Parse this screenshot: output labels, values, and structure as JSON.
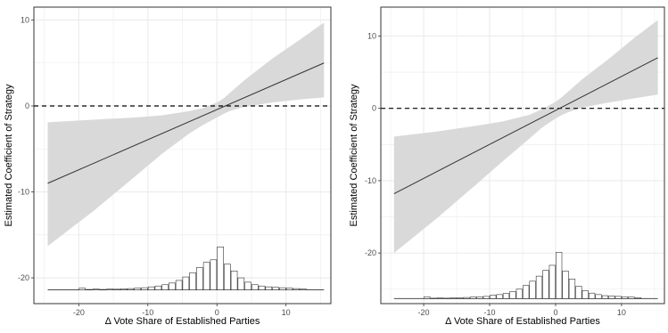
{
  "chart_data": [
    {
      "type": "line",
      "xlabel": "Δ Vote Share of Established Parties",
      "ylabel": "Estimated Coefficient of Strategy",
      "xlim": [
        -26.5,
        16.5
      ],
      "ylim": [
        -23.0,
        11.5
      ],
      "xticks": [
        -20,
        -10,
        0,
        10
      ],
      "yticks": [
        -20,
        -10,
        0,
        10
      ],
      "reference_line": {
        "y": 0,
        "style": "dashed"
      },
      "series": [
        {
          "role": "estimate",
          "x": [
            -24.5,
            15.5
          ],
          "y": [
            -9.0,
            5.0
          ]
        }
      ],
      "confidence_band": {
        "x": [
          -24.5,
          -18,
          -12,
          -8,
          -4,
          -2,
          0,
          1,
          2,
          4,
          8,
          12,
          15.5
        ],
        "lower": [
          -16.3,
          -12.3,
          -8.3,
          -5.6,
          -3.2,
          -2.2,
          -1.35,
          -0.9,
          -0.55,
          -0.1,
          0.4,
          0.75,
          1.0
        ],
        "upper": [
          -1.9,
          -1.6,
          -1.35,
          -1.1,
          -0.6,
          -0.25,
          0.4,
          0.9,
          1.6,
          3.0,
          5.5,
          7.7,
          9.7
        ]
      },
      "histogram": {
        "baseline": -21.4,
        "x": [
          -19.5,
          -18.5,
          -17.5,
          -16.5,
          -15.5,
          -14.5,
          -13.5,
          -12.5,
          -11.5,
          -10.5,
          -9.5,
          -8.5,
          -7.5,
          -6.5,
          -5.5,
          -4.5,
          -3.5,
          -2.5,
          -1.5,
          -0.5,
          0.5,
          1.5,
          2.5,
          3.5,
          4.5,
          5.5,
          6.5,
          7.5,
          8.5,
          9.5,
          10.5,
          11.5,
          12.5
        ],
        "heights": [
          0.2,
          0.05,
          0.1,
          0.05,
          0.1,
          0.08,
          0.12,
          0.15,
          0.2,
          0.25,
          0.35,
          0.45,
          0.6,
          0.8,
          1.1,
          1.5,
          2.0,
          2.6,
          3.2,
          3.5,
          5.0,
          3.0,
          2.2,
          1.4,
          0.9,
          0.6,
          0.45,
          0.35,
          0.3,
          0.25,
          0.2,
          0.15,
          0.1
        ]
      }
    },
    {
      "type": "line",
      "xlabel": "Δ Vote Share of Established Parties",
      "ylabel": "Estimated Coefficient of Strategy",
      "xlim": [
        -26.5,
        16.5
      ],
      "ylim": [
        -27.0,
        14.0
      ],
      "xticks": [
        -20,
        -10,
        0,
        10
      ],
      "yticks": [
        -20,
        -10,
        0,
        10
      ],
      "reference_line": {
        "y": 0,
        "style": "dashed"
      },
      "series": [
        {
          "role": "estimate",
          "x": [
            -24.5,
            15.5
          ],
          "y": [
            -11.8,
            7.0
          ]
        }
      ],
      "confidence_band": {
        "x": [
          -24.5,
          -18,
          -12,
          -8,
          -4,
          -2,
          0,
          1,
          2,
          4,
          8,
          12,
          15.5
        ],
        "lower": [
          -20.0,
          -15.2,
          -10.5,
          -7.3,
          -4.2,
          -2.6,
          -1.4,
          -0.9,
          -0.5,
          0.1,
          0.8,
          1.4,
          1.9
        ],
        "upper": [
          -3.9,
          -3.2,
          -2.4,
          -1.8,
          -0.9,
          -0.1,
          0.9,
          1.6,
          2.4,
          4.0,
          6.8,
          9.8,
          12.2
        ]
      },
      "histogram": {
        "baseline": -26.3,
        "x": [
          -19.5,
          -18.5,
          -17.5,
          -16.5,
          -15.5,
          -14.5,
          -13.5,
          -12.5,
          -11.5,
          -10.5,
          -9.5,
          -8.5,
          -7.5,
          -6.5,
          -5.5,
          -4.5,
          -3.5,
          -2.5,
          -1.5,
          -0.5,
          0.5,
          1.5,
          2.5,
          3.5,
          4.5,
          5.5,
          6.5,
          7.5,
          8.5,
          9.5,
          10.5,
          11.5,
          12.5
        ],
        "heights": [
          0.25,
          0.05,
          0.1,
          0.05,
          0.1,
          0.1,
          0.15,
          0.2,
          0.25,
          0.3,
          0.45,
          0.55,
          0.7,
          0.95,
          1.3,
          1.8,
          2.4,
          3.1,
          3.9,
          4.6,
          6.4,
          3.8,
          2.7,
          1.7,
          1.1,
          0.75,
          0.55,
          0.4,
          0.35,
          0.3,
          0.25,
          0.2,
          0.12
        ]
      }
    }
  ],
  "colors": {
    "band": "#d9d9d9",
    "line": "#333333",
    "grid": "#ebebeb",
    "axis_text": "#4d4d4d",
    "frame": "#333333"
  }
}
